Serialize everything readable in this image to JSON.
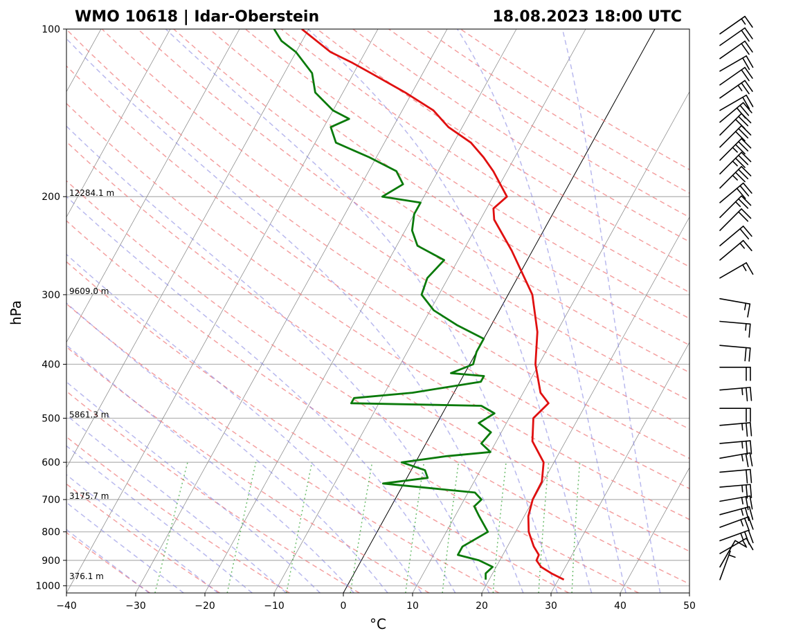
{
  "title_left": "WMO 10618 | Idar-Oberstein",
  "title_right": "18.08.2023 18:00 UTC",
  "chart_data": {
    "type": "line",
    "subtype": "skew-t log-p",
    "xlabel": "°C",
    "ylabel": "hPa",
    "xlim": [
      -40,
      50
    ],
    "ylim": [
      1030,
      100
    ],
    "yscale": "log",
    "xticks": [
      -40,
      -30,
      -20,
      -10,
      0,
      10,
      20,
      30,
      40,
      50
    ],
    "yticks": [
      100,
      200,
      300,
      400,
      500,
      600,
      700,
      800,
      900,
      1000
    ],
    "grid": true,
    "height_labels": [
      {
        "p": 200,
        "text": "12284.1 m"
      },
      {
        "p": 300,
        "text": "9609.0 m"
      },
      {
        "p": 500,
        "text": "5861.3 m"
      },
      {
        "p": 700,
        "text": "3175.7 m"
      },
      {
        "p": 975,
        "text": "376.1 m"
      }
    ],
    "series": [
      {
        "role": "temperature",
        "color": "#e01010",
        "points": [
          [
            975,
            30.8
          ],
          [
            950,
            28.5
          ],
          [
            925,
            26.5
          ],
          [
            900,
            25.3
          ],
          [
            880,
            25.2
          ],
          [
            850,
            23.8
          ],
          [
            800,
            21.9
          ],
          [
            750,
            20.6
          ],
          [
            700,
            19.9
          ],
          [
            650,
            19.8
          ],
          [
            600,
            18.5
          ],
          [
            550,
            15.2
          ],
          [
            500,
            13.5
          ],
          [
            470,
            14.5
          ],
          [
            450,
            12.5
          ],
          [
            400,
            9.5
          ],
          [
            350,
            7.2
          ],
          [
            300,
            3.5
          ],
          [
            250,
            -3.0
          ],
          [
            220,
            -8.0
          ],
          [
            210,
            -9.0
          ],
          [
            200,
            -8.0
          ],
          [
            180,
            -12.0
          ],
          [
            170,
            -14.5
          ],
          [
            160,
            -17.5
          ],
          [
            150,
            -22.0
          ],
          [
            140,
            -25.5
          ],
          [
            130,
            -31.0
          ],
          [
            120,
            -37.5
          ],
          [
            115,
            -41.0
          ],
          [
            110,
            -45.0
          ],
          [
            100,
            -51.0
          ]
        ]
      },
      {
        "role": "dewpoint",
        "color": "#0a7a0a",
        "points": [
          [
            975,
            19.5
          ],
          [
            950,
            19.0
          ],
          [
            925,
            19.5
          ],
          [
            900,
            17.0
          ],
          [
            880,
            13.5
          ],
          [
            850,
            13.5
          ],
          [
            800,
            16.0
          ],
          [
            750,
            13.5
          ],
          [
            720,
            12.0
          ],
          [
            700,
            12.5
          ],
          [
            680,
            11.0
          ],
          [
            655,
            -3.0
          ],
          [
            640,
            3.0
          ],
          [
            620,
            2.0
          ],
          [
            600,
            -2.0
          ],
          [
            585,
            4.0
          ],
          [
            575,
            10.0
          ],
          [
            555,
            8.0
          ],
          [
            530,
            8.5
          ],
          [
            510,
            6.0
          ],
          [
            490,
            7.5
          ],
          [
            475,
            5.0
          ],
          [
            470,
            -14.0
          ],
          [
            460,
            -14.0
          ],
          [
            450,
            -6.0
          ],
          [
            430,
            3.0
          ],
          [
            420,
            3.0
          ],
          [
            415,
            -2.0
          ],
          [
            400,
            0.5
          ],
          [
            380,
            0.0
          ],
          [
            360,
            0.0
          ],
          [
            340,
            -5.0
          ],
          [
            320,
            -9.5
          ],
          [
            300,
            -12.5
          ],
          [
            280,
            -13.0
          ],
          [
            260,
            -12.0
          ],
          [
            245,
            -17.0
          ],
          [
            230,
            -19.0
          ],
          [
            215,
            -20.0
          ],
          [
            205,
            -20.0
          ],
          [
            200,
            -26.0
          ],
          [
            190,
            -24.0
          ],
          [
            180,
            -26.0
          ],
          [
            170,
            -31.0
          ],
          [
            160,
            -37.0
          ],
          [
            150,
            -39.0
          ],
          [
            145,
            -37.0
          ],
          [
            140,
            -40.0
          ],
          [
            130,
            -44.0
          ],
          [
            120,
            -46.0
          ],
          [
            110,
            -50.0
          ],
          [
            105,
            -53.0
          ],
          [
            100,
            -55.0
          ]
        ]
      }
    ],
    "wind_barbs": [
      {
        "p": 975,
        "dir": 200,
        "speed": 5
      },
      {
        "p": 925,
        "dir": 210,
        "speed": 10
      },
      {
        "p": 875,
        "dir": 240,
        "speed": 15
      },
      {
        "p": 830,
        "dir": 250,
        "speed": 25
      },
      {
        "p": 785,
        "dir": 250,
        "speed": 25
      },
      {
        "p": 745,
        "dir": 255,
        "speed": 25
      },
      {
        "p": 705,
        "dir": 260,
        "speed": 25
      },
      {
        "p": 665,
        "dir": 265,
        "speed": 25
      },
      {
        "p": 625,
        "dir": 265,
        "speed": 20
      },
      {
        "p": 590,
        "dir": 260,
        "speed": 25
      },
      {
        "p": 555,
        "dir": 265,
        "speed": 25
      },
      {
        "p": 515,
        "dir": 265,
        "speed": 25
      },
      {
        "p": 480,
        "dir": 270,
        "speed": 20
      },
      {
        "p": 445,
        "dir": 265,
        "speed": 25
      },
      {
        "p": 405,
        "dir": 270,
        "speed": 20
      },
      {
        "p": 370,
        "dir": 275,
        "speed": 20
      },
      {
        "p": 335,
        "dir": 275,
        "speed": 15
      },
      {
        "p": 305,
        "dir": 280,
        "speed": 15
      },
      {
        "p": 280,
        "dir": 240,
        "speed": 15
      },
      {
        "p": 260,
        "dir": 230,
        "speed": 15
      },
      {
        "p": 245,
        "dir": 230,
        "speed": 20
      },
      {
        "p": 230,
        "dir": 225,
        "speed": 20
      },
      {
        "p": 218,
        "dir": 225,
        "speed": 25
      },
      {
        "p": 205,
        "dir": 230,
        "speed": 30
      },
      {
        "p": 193,
        "dir": 225,
        "speed": 35
      },
      {
        "p": 182,
        "dir": 225,
        "speed": 35
      },
      {
        "p": 172,
        "dir": 225,
        "speed": 35
      },
      {
        "p": 163,
        "dir": 225,
        "speed": 30
      },
      {
        "p": 155,
        "dir": 225,
        "speed": 30
      },
      {
        "p": 147,
        "dir": 230,
        "speed": 30
      },
      {
        "p": 140,
        "dir": 240,
        "speed": 20
      },
      {
        "p": 133,
        "dir": 235,
        "speed": 25
      },
      {
        "p": 126,
        "dir": 235,
        "speed": 20
      },
      {
        "p": 119,
        "dir": 240,
        "speed": 20
      },
      {
        "p": 113,
        "dir": 235,
        "speed": 20
      },
      {
        "p": 107,
        "dir": 235,
        "speed": 20
      },
      {
        "p": 102,
        "dir": 235,
        "speed": 15
      }
    ],
    "background": {
      "dry_adiabat_color": "#f08080",
      "moist_adiabat_color": "#8080e0",
      "mixing_ratio_color": "#2ca02c",
      "isotherm_color": "#808080",
      "highlight_isotherm_c": 0
    }
  }
}
